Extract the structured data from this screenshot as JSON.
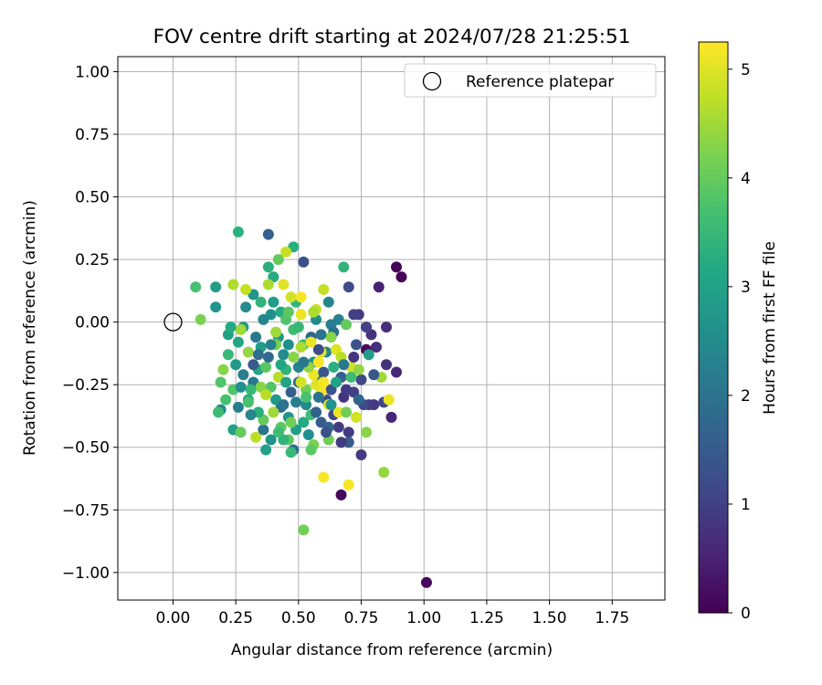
{
  "chart_data": {
    "type": "scatter",
    "title": "FOV centre drift starting at 2024/07/28 21:25:51",
    "xlabel": "Angular distance from reference (arcmin)",
    "ylabel": "Rotation from reference (arcmin)",
    "xlim": [
      -0.22,
      1.96
    ],
    "ylim": [
      -1.11,
      1.06
    ],
    "xticks": [
      "0.00",
      "0.25",
      "0.50",
      "0.75",
      "1.00",
      "1.25",
      "1.50",
      "1.75"
    ],
    "yticks": [
      "1.00",
      "0.75",
      "0.50",
      "0.25",
      "0.00",
      "−0.25",
      "−0.50",
      "−0.75",
      "−1.00"
    ],
    "xtick_values": [
      0,
      0.25,
      0.5,
      0.75,
      1.0,
      1.25,
      1.5,
      1.75
    ],
    "ytick_values": [
      1.0,
      0.75,
      0.5,
      0.25,
      0,
      -0.25,
      -0.5,
      -0.75,
      -1.0
    ],
    "grid": true,
    "legend": {
      "position": "top-right",
      "entries": [
        {
          "label": "Reference platepar",
          "marker": "open-circle"
        }
      ]
    },
    "reference_point": {
      "x": 0.0,
      "y": 0.0
    },
    "colorbar": {
      "label": "Hours from first FF file",
      "colormap": "viridis",
      "range": [
        0,
        5.25
      ],
      "ticks": [
        "0",
        "1",
        "2",
        "3",
        "4",
        "5"
      ],
      "tick_values": [
        0,
        1,
        2,
        3,
        4,
        5
      ]
    },
    "points": [
      {
        "x": 0.89,
        "y": 0.22,
        "h": 0.05
      },
      {
        "x": 0.91,
        "y": 0.18,
        "h": 0.05
      },
      {
        "x": 0.77,
        "y": -0.11,
        "h": 0.1
      },
      {
        "x": 0.67,
        "y": -0.69,
        "h": 0.1
      },
      {
        "x": 1.01,
        "y": -1.04,
        "h": 0.1
      },
      {
        "x": 0.82,
        "y": 0.14,
        "h": 0.5
      },
      {
        "x": 0.87,
        "y": -0.38,
        "h": 0.55
      },
      {
        "x": 0.89,
        "y": -0.2,
        "h": 0.6
      },
      {
        "x": 0.85,
        "y": -0.02,
        "h": 0.7
      },
      {
        "x": 0.81,
        "y": -0.1,
        "h": 0.7
      },
      {
        "x": 0.79,
        "y": -0.05,
        "h": 0.75
      },
      {
        "x": 0.85,
        "y": -0.17,
        "h": 0.75
      },
      {
        "x": 0.75,
        "y": -0.53,
        "h": 0.9
      },
      {
        "x": 0.74,
        "y": 0.03,
        "h": 0.9
      },
      {
        "x": 0.72,
        "y": 0.03,
        "h": 1.0
      },
      {
        "x": 0.78,
        "y": -0.33,
        "h": 1.0
      },
      {
        "x": 0.7,
        "y": -0.44,
        "h": 0.9
      },
      {
        "x": 0.68,
        "y": -0.3,
        "h": 0.8
      },
      {
        "x": 0.66,
        "y": -0.42,
        "h": 0.9
      },
      {
        "x": 0.69,
        "y": -0.27,
        "h": 0.9
      },
      {
        "x": 0.64,
        "y": -0.37,
        "h": 1.1
      },
      {
        "x": 0.72,
        "y": -0.28,
        "h": 1.0
      },
      {
        "x": 0.76,
        "y": -0.33,
        "h": 1.2
      },
      {
        "x": 0.8,
        "y": -0.33,
        "h": 0.9
      },
      {
        "x": 0.84,
        "y": -0.32,
        "h": 1.1
      },
      {
        "x": 0.7,
        "y": -0.48,
        "h": 1.5
      },
      {
        "x": 0.52,
        "y": 0.24,
        "h": 1.3
      },
      {
        "x": 0.38,
        "y": 0.35,
        "h": 1.6
      },
      {
        "x": 0.7,
        "y": 0.14,
        "h": 1.2
      },
      {
        "x": 0.59,
        "y": -0.4,
        "h": 1.5
      },
      {
        "x": 0.61,
        "y": -0.31,
        "h": 1.2
      },
      {
        "x": 0.63,
        "y": -0.27,
        "h": 1.3
      },
      {
        "x": 0.74,
        "y": -0.31,
        "h": 1.7
      },
      {
        "x": 0.67,
        "y": -0.22,
        "h": 1.6
      },
      {
        "x": 0.55,
        "y": -0.06,
        "h": 1.7
      },
      {
        "x": 0.5,
        "y": -0.24,
        "h": 1.8
      },
      {
        "x": 0.48,
        "y": -0.51,
        "h": 1.9
      },
      {
        "x": 0.43,
        "y": -0.34,
        "h": 1.9
      },
      {
        "x": 0.36,
        "y": -0.43,
        "h": 2.0
      },
      {
        "x": 0.32,
        "y": -0.24,
        "h": 2.1
      },
      {
        "x": 0.28,
        "y": -0.21,
        "h": 2.2
      },
      {
        "x": 0.63,
        "y": -0.01,
        "h": 2.2
      },
      {
        "x": 0.66,
        "y": 0.01,
        "h": 2.3
      },
      {
        "x": 0.62,
        "y": 0.08,
        "h": 2.4
      },
      {
        "x": 0.57,
        "y": 0.01,
        "h": 2.5
      },
      {
        "x": 0.61,
        "y": -0.12,
        "h": 2.4
      },
      {
        "x": 0.56,
        "y": -0.16,
        "h": 2.6
      },
      {
        "x": 0.58,
        "y": -0.22,
        "h": 2.3
      },
      {
        "x": 0.53,
        "y": -0.33,
        "h": 2.5
      },
      {
        "x": 0.46,
        "y": -0.38,
        "h": 2.7
      },
      {
        "x": 0.42,
        "y": -0.06,
        "h": 2.8
      },
      {
        "x": 0.39,
        "y": 0.03,
        "h": 2.6
      },
      {
        "x": 0.35,
        "y": -0.1,
        "h": 2.9
      },
      {
        "x": 0.32,
        "y": 0.11,
        "h": 2.7
      },
      {
        "x": 0.28,
        "y": -0.02,
        "h": 2.8
      },
      {
        "x": 0.26,
        "y": -0.34,
        "h": 2.2
      },
      {
        "x": 0.19,
        "y": -0.35,
        "h": 2.5
      },
      {
        "x": 0.17,
        "y": 0.06,
        "h": 2.7
      },
      {
        "x": 0.17,
        "y": 0.14,
        "h": 2.9
      },
      {
        "x": 0.22,
        "y": -0.05,
        "h": 3.0
      },
      {
        "x": 0.24,
        "y": -0.43,
        "h": 3.0
      },
      {
        "x": 0.26,
        "y": -0.08,
        "h": 3.1
      },
      {
        "x": 0.3,
        "y": -0.31,
        "h": 3.1
      },
      {
        "x": 0.34,
        "y": -0.19,
        "h": 3.1
      },
      {
        "x": 0.37,
        "y": -0.51,
        "h": 3.0
      },
      {
        "x": 0.38,
        "y": 0.22,
        "h": 3.3
      },
      {
        "x": 0.4,
        "y": 0.18,
        "h": 3.2
      },
      {
        "x": 0.43,
        "y": 0.04,
        "h": 3.2
      },
      {
        "x": 0.48,
        "y": 0.3,
        "h": 3.3
      },
      {
        "x": 0.49,
        "y": 0.08,
        "h": 3.4
      },
      {
        "x": 0.26,
        "y": 0.36,
        "h": 3.3
      },
      {
        "x": 0.45,
        "y": -0.19,
        "h": 3.4
      },
      {
        "x": 0.47,
        "y": -0.52,
        "h": 3.5
      },
      {
        "x": 0.68,
        "y": 0.22,
        "h": 3.4
      },
      {
        "x": 0.52,
        "y": -0.09,
        "h": 3.5
      },
      {
        "x": 0.55,
        "y": -0.37,
        "h": 3.6
      },
      {
        "x": 0.18,
        "y": -0.36,
        "h": 3.6
      },
      {
        "x": 0.09,
        "y": 0.14,
        "h": 3.7
      },
      {
        "x": 0.21,
        "y": -0.31,
        "h": 3.7
      },
      {
        "x": 0.24,
        "y": -0.27,
        "h": 3.8
      },
      {
        "x": 0.39,
        "y": -0.26,
        "h": 3.8
      },
      {
        "x": 0.43,
        "y": -0.42,
        "h": 3.9
      },
      {
        "x": 0.46,
        "y": -0.47,
        "h": 3.9
      },
      {
        "x": 0.42,
        "y": 0.25,
        "h": 4.0
      },
      {
        "x": 0.36,
        "y": -0.39,
        "h": 4.0
      },
      {
        "x": 0.52,
        "y": -0.83,
        "h": 4.1
      },
      {
        "x": 0.56,
        "y": -0.49,
        "h": 4.2
      },
      {
        "x": 0.62,
        "y": -0.47,
        "h": 4.1
      },
      {
        "x": 0.77,
        "y": -0.44,
        "h": 4.3
      },
      {
        "x": 0.84,
        "y": -0.6,
        "h": 4.4
      },
      {
        "x": 0.83,
        "y": -0.22,
        "h": 4.5
      },
      {
        "x": 0.11,
        "y": 0.01,
        "h": 4.2
      },
      {
        "x": 0.2,
        "y": -0.19,
        "h": 4.3
      },
      {
        "x": 0.24,
        "y": 0.15,
        "h": 4.6
      },
      {
        "x": 0.27,
        "y": -0.03,
        "h": 4.5
      },
      {
        "x": 0.33,
        "y": -0.46,
        "h": 4.7
      },
      {
        "x": 0.45,
        "y": 0.28,
        "h": 4.8
      },
      {
        "x": 0.47,
        "y": 0.1,
        "h": 4.9
      },
      {
        "x": 0.57,
        "y": 0.05,
        "h": 4.8
      },
      {
        "x": 0.62,
        "y": -0.33,
        "h": 4.9
      },
      {
        "x": 0.65,
        "y": -0.11,
        "h": 5.0
      },
      {
        "x": 0.73,
        "y": -0.38,
        "h": 4.9
      },
      {
        "x": 0.86,
        "y": -0.31,
        "h": 5.1
      },
      {
        "x": 0.6,
        "y": -0.62,
        "h": 5.2
      },
      {
        "x": 0.7,
        "y": -0.65,
        "h": 5.2
      },
      {
        "x": 0.66,
        "y": -0.36,
        "h": 5.1
      },
      {
        "x": 0.59,
        "y": -0.28,
        "h": 5.2
      },
      {
        "x": 0.57,
        "y": -0.25,
        "h": 5.0
      },
      {
        "x": 0.56,
        "y": -0.21,
        "h": 5.1
      },
      {
        "x": 0.58,
        "y": -0.16,
        "h": 5.2
      },
      {
        "x": 0.59,
        "y": -0.12,
        "h": 5.0
      },
      {
        "x": 0.71,
        "y": -0.18,
        "h": 4.9
      },
      {
        "x": 0.67,
        "y": -0.14,
        "h": 4.7
      },
      {
        "x": 0.51,
        "y": 0.03,
        "h": 5.1
      },
      {
        "x": 0.51,
        "y": 0.1,
        "h": 5.2
      },
      {
        "x": 0.6,
        "y": 0.13,
        "h": 4.8
      },
      {
        "x": 0.56,
        "y": 0.04,
        "h": 4.6
      },
      {
        "x": 0.51,
        "y": -0.1,
        "h": 4.6
      },
      {
        "x": 0.54,
        "y": -0.18,
        "h": 4.4
      },
      {
        "x": 0.4,
        "y": -0.36,
        "h": 4.5
      },
      {
        "x": 0.42,
        "y": -0.22,
        "h": 4.7
      },
      {
        "x": 0.35,
        "y": -0.26,
        "h": 4.3
      },
      {
        "x": 0.3,
        "y": -0.12,
        "h": 4.4
      },
      {
        "x": 0.29,
        "y": 0.13,
        "h": 4.8
      },
      {
        "x": 0.38,
        "y": 0.15,
        "h": 4.6
      },
      {
        "x": 0.44,
        "y": 0.15,
        "h": 5.0
      },
      {
        "x": 0.41,
        "y": -0.09,
        "h": 4.2
      },
      {
        "x": 0.37,
        "y": -0.18,
        "h": 3.9
      },
      {
        "x": 0.31,
        "y": -0.27,
        "h": 3.5
      },
      {
        "x": 0.45,
        "y": 0.01,
        "h": 3.8
      },
      {
        "x": 0.48,
        "y": -0.03,
        "h": 3.6
      },
      {
        "x": 0.52,
        "y": -0.4,
        "h": 3.2
      },
      {
        "x": 0.49,
        "y": -0.43,
        "h": 2.9
      },
      {
        "x": 0.54,
        "y": -0.45,
        "h": 2.6
      },
      {
        "x": 0.41,
        "y": -0.31,
        "h": 2.8
      },
      {
        "x": 0.44,
        "y": -0.13,
        "h": 2.5
      },
      {
        "x": 0.36,
        "y": 0.01,
        "h": 2.4
      },
      {
        "x": 0.33,
        "y": -0.06,
        "h": 2.1
      },
      {
        "x": 0.38,
        "y": -0.14,
        "h": 1.8
      },
      {
        "x": 0.47,
        "y": -0.28,
        "h": 1.6
      },
      {
        "x": 0.6,
        "y": -0.2,
        "h": 1.4
      },
      {
        "x": 0.64,
        "y": -0.04,
        "h": 1.9
      },
      {
        "x": 0.68,
        "y": -0.17,
        "h": 2.1
      },
      {
        "x": 0.73,
        "y": -0.09,
        "h": 1.3
      },
      {
        "x": 0.75,
        "y": -0.23,
        "h": 1.1
      },
      {
        "x": 0.62,
        "y": -0.42,
        "h": 1.7
      },
      {
        "x": 0.58,
        "y": -0.3,
        "h": 2.0
      },
      {
        "x": 0.5,
        "y": -0.18,
        "h": 2.3
      },
      {
        "x": 0.46,
        "y": -0.09,
        "h": 2.6
      },
      {
        "x": 0.4,
        "y": 0.08,
        "h": 2.9
      },
      {
        "x": 0.34,
        "y": -0.36,
        "h": 3.3
      },
      {
        "x": 0.22,
        "y": -0.13,
        "h": 3.5
      },
      {
        "x": 0.19,
        "y": -0.24,
        "h": 3.8
      },
      {
        "x": 0.27,
        "y": -0.44,
        "h": 4.0
      },
      {
        "x": 0.3,
        "y": -0.32,
        "h": 3.7
      },
      {
        "x": 0.53,
        "y": -0.27,
        "h": 4.1
      },
      {
        "x": 0.63,
        "y": -0.06,
        "h": 4.3
      },
      {
        "x": 0.69,
        "y": -0.01,
        "h": 4.0
      },
      {
        "x": 0.71,
        "y": -0.22,
        "h": 3.6
      },
      {
        "x": 0.65,
        "y": -0.24,
        "h": 3.0
      },
      {
        "x": 0.55,
        "y": -0.51,
        "h": 3.9
      },
      {
        "x": 0.44,
        "y": -0.47,
        "h": 3.4
      },
      {
        "x": 0.39,
        "y": -0.47,
        "h": 2.7
      },
      {
        "x": 0.31,
        "y": -0.37,
        "h": 2.4
      },
      {
        "x": 0.25,
        "y": -0.17,
        "h": 2.8
      },
      {
        "x": 0.23,
        "y": -0.02,
        "h": 3.2
      },
      {
        "x": 0.29,
        "y": 0.06,
        "h": 2.5
      },
      {
        "x": 0.35,
        "y": 0.08,
        "h": 3.4
      },
      {
        "x": 0.43,
        "y": -0.17,
        "h": 3.1
      },
      {
        "x": 0.49,
        "y": -0.32,
        "h": 2.2
      },
      {
        "x": 0.57,
        "y": -0.36,
        "h": 1.6
      },
      {
        "x": 0.61,
        "y": -0.44,
        "h": 1.3
      },
      {
        "x": 0.67,
        "y": -0.48,
        "h": 0.9
      },
      {
        "x": 0.72,
        "y": -0.14,
        "h": 0.8
      },
      {
        "x": 0.77,
        "y": -0.02,
        "h": 1.0
      },
      {
        "x": 0.8,
        "y": -0.21,
        "h": 1.4
      },
      {
        "x": 0.64,
        "y": -0.18,
        "h": 3.3
      },
      {
        "x": 0.51,
        "y": -0.24,
        "h": 4.9
      },
      {
        "x": 0.41,
        "y": -0.04,
        "h": 4.5
      },
      {
        "x": 0.37,
        "y": -0.29,
        "h": 4.7
      },
      {
        "x": 0.55,
        "y": -0.08,
        "h": 5.1
      },
      {
        "x": 0.6,
        "y": -0.24,
        "h": 5.2
      },
      {
        "x": 0.48,
        "y": -0.14,
        "h": 4.3
      },
      {
        "x": 0.53,
        "y": -0.3,
        "h": 3.7
      },
      {
        "x": 0.45,
        "y": -0.24,
        "h": 3.0
      },
      {
        "x": 0.39,
        "y": -0.09,
        "h": 2.3
      },
      {
        "x": 0.34,
        "y": -0.13,
        "h": 1.9
      },
      {
        "x": 0.59,
        "y": -0.05,
        "h": 2.0
      },
      {
        "x": 0.63,
        "y": -0.33,
        "h": 2.7
      },
      {
        "x": 0.69,
        "y": -0.36,
        "h": 4.1
      },
      {
        "x": 0.74,
        "y": -0.19,
        "h": 4.4
      },
      {
        "x": 0.78,
        "y": -0.13,
        "h": 2.9
      },
      {
        "x": 0.47,
        "y": -0.4,
        "h": 4.1
      },
      {
        "x": 0.42,
        "y": -0.44,
        "h": 3.6
      },
      {
        "x": 0.52,
        "y": -0.16,
        "h": 2.1
      },
      {
        "x": 0.46,
        "y": 0.04,
        "h": 3.9
      },
      {
        "x": 0.5,
        "y": -0.02,
        "h": 3.5
      },
      {
        "x": 0.44,
        "y": -0.33,
        "h": 2.0
      },
      {
        "x": 0.32,
        "y": -0.17,
        "h": 1.5
      },
      {
        "x": 0.27,
        "y": -0.26,
        "h": 2.6
      },
      {
        "x": 0.58,
        "y": -0.11,
        "h": 1.2
      }
    ]
  }
}
